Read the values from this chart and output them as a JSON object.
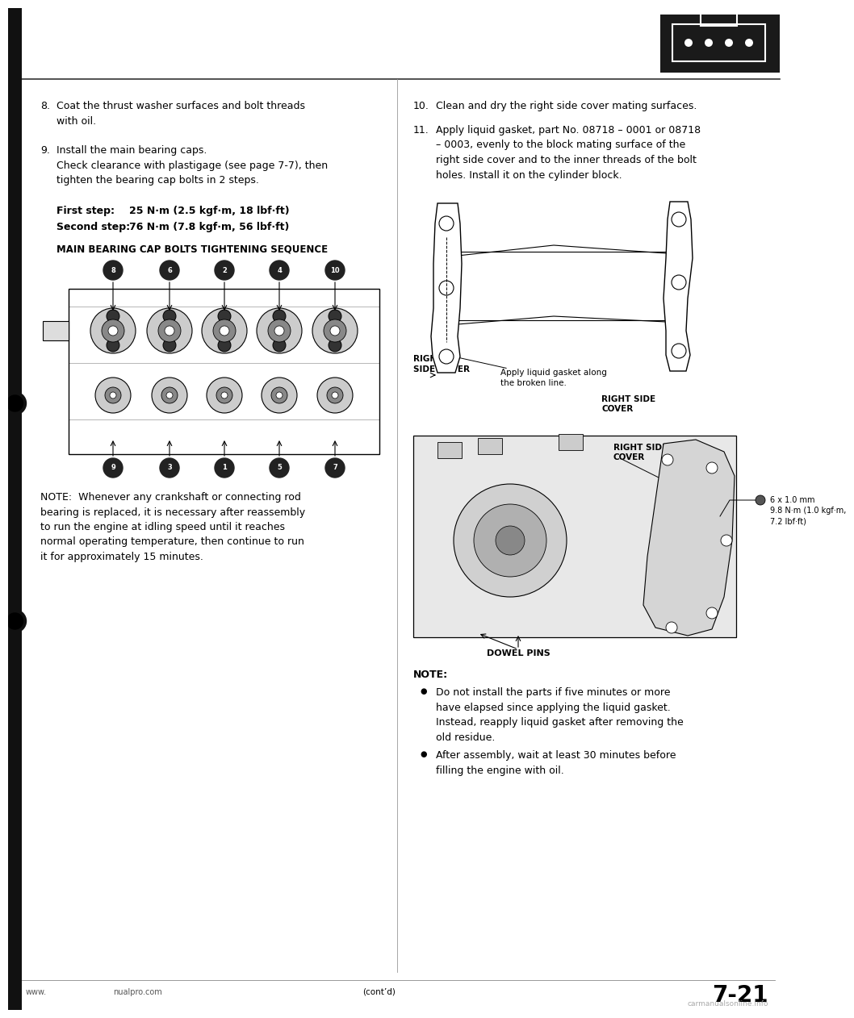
{
  "page_bg": "#ffffff",
  "left_bar_color": "#111111",
  "separator_color": "#222222",
  "logo_bg": "#1a1a1a",
  "item8_text": "Coat the thrust washer surfaces and bolt threads\nwith oil.",
  "item9_text": "Install the main bearing caps.\nCheck clearance with plastigage (see page 7-7), then\ntighten the bearing cap bolts in 2 steps.",
  "first_step_label": "First step:",
  "first_step_value": "25 N·m (2.5 kgf·m, 18 lbf·ft)",
  "second_step_label": "Second step:",
  "second_step_value": "76 N·m (7.8 kgf·m, 56 lbf·ft)",
  "diagram_title": "MAIN BEARING CAP BOLTS TIGHTENING SEQUENCE",
  "top_nums": [
    "8",
    "6",
    "2",
    "4",
    "10"
  ],
  "bot_nums": [
    "9",
    "3",
    "1",
    "5",
    "7"
  ],
  "note_text": "NOTE:  Whenever any crankshaft or connecting rod\nbearing is replaced, it is necessary after reassembly\nto run the engine at idling speed until it reaches\nnormal operating temperature, then continue to run\nit for approximately 15 minutes.",
  "item10_text": "Clean and dry the right side cover mating surfaces.",
  "item11_text": "Apply liquid gasket, part No. 08718 – 0001 or 08718\n– 0003, evenly to the block mating surface of the\nright side cover and to the inner threads of the bolt\nholes. Install it on the cylinder block.",
  "right_side_cover_label": "RIGHT\nSIDE COVER",
  "apply_gasket_label": "Apply liquid gasket along\nthe broken line.",
  "right_side_cover2_label": "RIGHT SIDE\nCOVER",
  "bolt_spec": "6 x 1.0 mm\n9.8 N·m (1.0 kgf·m,\n7.2 lbf·ft)",
  "dowel_pins_label": "DOWEL PINS",
  "note2_title": "NOTE:",
  "note2_bullet1": "Do not install the parts if five minutes or more\nhave elapsed since applying the liquid gasket.\nInstead, reapply liquid gasket after removing the\nold residue.",
  "note2_bullet2": "After assembly, wait at least 30 minutes before\nfilling the engine with oil.",
  "footer_left": "www.",
  "footer_mid": "nualpro.com",
  "footer_page": "7-21",
  "footer_watermark": "carmanualsonline.info",
  "contd": "(cont’d)"
}
